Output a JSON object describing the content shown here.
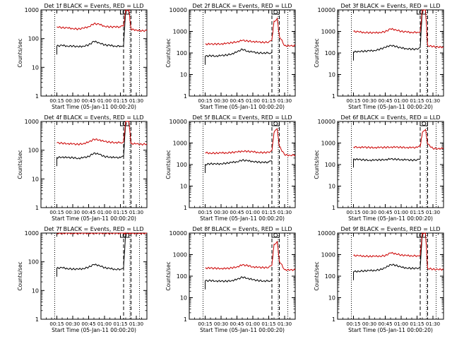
{
  "colors": {
    "events": "#000000",
    "lld": "#cc0000",
    "axes": "#000000"
  },
  "chart_data": [
    {
      "type": "line",
      "title": "Det 1f BLACK = Events, RED = LLD",
      "xlabel": "Start Time (05-Jan-11 00:00:20)",
      "ylabel": "Counts/sec",
      "ylog": true,
      "ylim": [
        1,
        1000
      ],
      "yticks": [
        "1",
        "10",
        "100",
        "1000"
      ],
      "xticks": [
        "00:15",
        "00:30",
        "00:45",
        "01:00",
        "01:15",
        "01:30"
      ],
      "xtick_minutes": [
        15,
        30,
        45,
        60,
        75,
        90
      ],
      "xlim_minutes": [
        0,
        100
      ],
      "vlines_dotted": [
        13,
        84,
        93
      ],
      "vlines_dashed": [
        78,
        85
      ],
      "flare": {
        "peak": 1000,
        "minutes": [
          75,
          83
        ]
      },
      "x": [
        5,
        10,
        15,
        20,
        25,
        30,
        35,
        40,
        45,
        50,
        55,
        60,
        65,
        70,
        75,
        78,
        80,
        83,
        85,
        90,
        95,
        100
      ],
      "series": [
        {
          "name": "Events",
          "values": [
            null,
            null,
            55,
            58,
            55,
            55,
            52,
            55,
            60,
            80,
            72,
            60,
            58,
            55,
            55,
            60,
            1000,
            1000,
            null,
            null,
            null,
            null
          ]
        },
        {
          "name": "LLD",
          "values": [
            null,
            null,
            260,
            240,
            235,
            225,
            215,
            230,
            260,
            330,
            315,
            270,
            255,
            255,
            255,
            270,
            1000,
            1000,
            210,
            200,
            185,
            190
          ]
        }
      ]
    },
    {
      "type": "line",
      "title": "Det 2f BLACK = Events, RED = LLD",
      "xlabel": "Start Time (05-Jan-11 00:00:20)",
      "ylabel": "Counts/sec",
      "ylog": true,
      "ylim": [
        1,
        10000
      ],
      "yticks": [
        "1",
        "10",
        "100",
        "1000",
        "10000"
      ],
      "xticks": [
        "00:15",
        "00:30",
        "00:45",
        "01:00",
        "01:15",
        "01:30"
      ],
      "xtick_minutes": [
        15,
        30,
        45,
        60,
        75,
        90
      ],
      "xlim_minutes": [
        0,
        100
      ],
      "vlines_dotted": [
        13,
        84,
        93
      ],
      "vlines_dashed": [
        78,
        85
      ],
      "flare": {
        "peak": 10000,
        "minutes": [
          78,
          85
        ]
      },
      "x": [
        5,
        10,
        15,
        20,
        25,
        30,
        35,
        40,
        45,
        50,
        55,
        60,
        65,
        70,
        75,
        78,
        80,
        83,
        85,
        90,
        95,
        100
      ],
      "series": [
        {
          "name": "Events",
          "values": [
            null,
            null,
            70,
            75,
            72,
            75,
            80,
            90,
            110,
            150,
            120,
            110,
            100,
            100,
            100,
            110,
            null,
            null,
            null,
            null,
            null,
            null
          ]
        },
        {
          "name": "LLD",
          "values": [
            null,
            null,
            260,
            255,
            260,
            265,
            275,
            300,
            330,
            380,
            360,
            340,
            320,
            310,
            320,
            400,
            3000,
            4000,
            600,
            220,
            210,
            220
          ]
        }
      ]
    },
    {
      "type": "line",
      "title": "Det 3f BLACK = Events, RED = LLD",
      "xlabel": "Start Time (05-Jan-11 00:00:20)",
      "ylabel": "Counts/sec",
      "ylog": true,
      "ylim": [
        1,
        10000
      ],
      "yticks": [
        "1",
        "10",
        "100",
        "1000",
        "10000"
      ],
      "xticks": [
        "00:15",
        "00:30",
        "00:45",
        "01:00",
        "01:15",
        "01:30"
      ],
      "xtick_minutes": [
        15,
        30,
        45,
        60,
        75,
        90
      ],
      "xlim_minutes": [
        0,
        100
      ],
      "vlines_dotted": [
        13,
        84,
        93
      ],
      "vlines_dashed": [
        78,
        85
      ],
      "flare": {
        "peak": 10000,
        "minutes": [
          75,
          83
        ]
      },
      "x": [
        5,
        10,
        15,
        20,
        25,
        30,
        35,
        40,
        45,
        50,
        55,
        60,
        65,
        70,
        75,
        78,
        80,
        83,
        85,
        90,
        95,
        100
      ],
      "series": [
        {
          "name": "Events",
          "values": [
            null,
            null,
            110,
            120,
            120,
            125,
            130,
            150,
            180,
            230,
            200,
            170,
            160,
            150,
            150,
            180,
            10000,
            10000,
            null,
            null,
            null,
            null
          ]
        },
        {
          "name": "LLD",
          "values": [
            null,
            null,
            1000,
            950,
            900,
            880,
            860,
            900,
            980,
            1300,
            1200,
            1000,
            950,
            900,
            920,
            1000,
            10000,
            10000,
            220,
            200,
            185,
            190
          ]
        }
      ]
    },
    {
      "type": "line",
      "title": "Det 4f BLACK = Events, RED = LLD",
      "xlabel": "Start Time (05-Jan-11 00:00:20)",
      "ylabel": "Counts/sec",
      "ylog": true,
      "ylim": [
        1,
        1000
      ],
      "yticks": [
        "1",
        "10",
        "100",
        "1000"
      ],
      "xticks": [
        "00:15",
        "00:30",
        "00:45",
        "01:00",
        "01:15",
        "01:30"
      ],
      "xtick_minutes": [
        15,
        30,
        45,
        60,
        75,
        90
      ],
      "xlim_minutes": [
        0,
        100
      ],
      "vlines_dotted": [
        13,
        84,
        93
      ],
      "vlines_dashed": [
        78,
        85
      ],
      "flare": {
        "peak": 1000,
        "minutes": [
          75,
          83
        ]
      },
      "x": [
        5,
        10,
        15,
        20,
        25,
        30,
        35,
        40,
        45,
        50,
        55,
        60,
        65,
        70,
        75,
        78,
        80,
        83,
        85,
        90,
        95,
        100
      ],
      "series": [
        {
          "name": "Events",
          "values": [
            null,
            null,
            55,
            58,
            55,
            55,
            52,
            55,
            60,
            80,
            72,
            60,
            58,
            55,
            55,
            60,
            1000,
            1000,
            null,
            null,
            null,
            null
          ]
        },
        {
          "name": "LLD",
          "values": [
            null,
            null,
            180,
            175,
            170,
            165,
            160,
            170,
            190,
            240,
            230,
            200,
            190,
            185,
            185,
            200,
            1000,
            1000,
            170,
            165,
            160,
            165
          ]
        }
      ]
    },
    {
      "type": "line",
      "title": "Det 5f BLACK = Events, RED = LLD",
      "xlabel": "Start Time (05-Jan-11 00:00:20)",
      "ylabel": "Counts/sec",
      "ylog": true,
      "ylim": [
        1,
        10000
      ],
      "yticks": [
        "1",
        "10",
        "100",
        "1000",
        "10000"
      ],
      "xticks": [
        "00:15",
        "00:30",
        "00:45",
        "01:00",
        "01:15",
        "01:30"
      ],
      "xtick_minutes": [
        15,
        30,
        45,
        60,
        75,
        90
      ],
      "xlim_minutes": [
        0,
        100
      ],
      "vlines_dotted": [
        13,
        84,
        93
      ],
      "vlines_dashed": [
        78,
        85
      ],
      "flare": {
        "peak": 10000,
        "minutes": [
          78,
          85
        ]
      },
      "x": [
        5,
        10,
        15,
        20,
        25,
        30,
        35,
        40,
        45,
        50,
        55,
        60,
        65,
        70,
        75,
        78,
        80,
        83,
        85,
        90,
        95,
        100
      ],
      "series": [
        {
          "name": "Events",
          "values": [
            null,
            null,
            100,
            110,
            105,
            110,
            115,
            125,
            135,
            160,
            150,
            140,
            130,
            125,
            130,
            140,
            null,
            null,
            null,
            null,
            null,
            null
          ]
        },
        {
          "name": "LLD",
          "values": [
            null,
            null,
            350,
            340,
            340,
            345,
            350,
            365,
            380,
            420,
            410,
            390,
            370,
            360,
            370,
            450,
            3000,
            4500,
            700,
            280,
            270,
            280
          ]
        }
      ]
    },
    {
      "type": "line",
      "title": "Det 6f BLACK = Events, RED = LLD",
      "xlabel": "Start Time (05-Jan-11 00:00:20)",
      "ylabel": "Counts/sec",
      "ylog": true,
      "ylim": [
        1,
        10000
      ],
      "yticks": [
        "1",
        "10",
        "100",
        "1000",
        "10000"
      ],
      "xticks": [
        "00:15",
        "00:30",
        "00:45",
        "01:00",
        "01:15",
        "01:30"
      ],
      "xtick_minutes": [
        15,
        30,
        45,
        60,
        75,
        90
      ],
      "xlim_minutes": [
        0,
        100
      ],
      "vlines_dotted": [
        13,
        84,
        93
      ],
      "vlines_dashed": [
        78,
        85
      ],
      "flare": {
        "peak": 10000,
        "minutes": [
          78,
          85
        ]
      },
      "x": [
        5,
        10,
        15,
        20,
        25,
        30,
        35,
        40,
        45,
        50,
        55,
        60,
        65,
        70,
        75,
        78,
        80,
        83,
        85,
        90,
        95,
        100
      ],
      "series": [
        {
          "name": "Events",
          "values": [
            null,
            null,
            180,
            170,
            165,
            160,
            160,
            165,
            170,
            180,
            175,
            170,
            165,
            160,
            165,
            180,
            null,
            null,
            null,
            null,
            null,
            null
          ]
        },
        {
          "name": "LLD",
          "values": [
            null,
            null,
            650,
            640,
            630,
            620,
            615,
            620,
            625,
            650,
            640,
            630,
            620,
            610,
            620,
            700,
            3000,
            4200,
            900,
            560,
            550,
            560
          ]
        }
      ]
    },
    {
      "type": "line",
      "title": "Det 7f BLACK = Events, RED = LLD",
      "xlabel": "Start Time (05-Jan-11 00:00:20)",
      "ylabel": "Counts/sec",
      "ylog": true,
      "ylim": [
        1,
        1000
      ],
      "yticks": [
        "1",
        "10",
        "100",
        "1000"
      ],
      "xticks": [
        "00:15",
        "00:30",
        "00:45",
        "01:00",
        "01:15",
        "01:30"
      ],
      "xtick_minutes": [
        15,
        30,
        45,
        60,
        75,
        90
      ],
      "xlim_minutes": [
        0,
        100
      ],
      "vlines_dotted": [
        13,
        84,
        93
      ],
      "vlines_dashed": [
        78,
        85
      ],
      "flare": {
        "peak": 1000,
        "minutes": [
          75,
          83
        ]
      },
      "x": [
        5,
        10,
        15,
        20,
        25,
        30,
        35,
        40,
        45,
        50,
        55,
        60,
        65,
        70,
        75,
        78,
        80,
        83,
        85,
        90,
        95,
        100
      ],
      "series": [
        {
          "name": "Events",
          "values": [
            null,
            null,
            60,
            62,
            58,
            56,
            55,
            58,
            65,
            80,
            75,
            62,
            58,
            55,
            55,
            65,
            1000,
            1000,
            null,
            null,
            null,
            null
          ]
        },
        {
          "name": "LLD",
          "values": [
            null,
            null,
            980,
            990,
            985,
            990,
            995,
            990,
            985,
            1000,
            995,
            990,
            985,
            990,
            985,
            990,
            1000,
            1000,
            980,
            985,
            990,
            985
          ]
        }
      ]
    },
    {
      "type": "line",
      "title": "Det 8f BLACK = Events, RED = LLD",
      "xlabel": "Start Time (05-Jan-11 00:00:20)",
      "ylabel": "Counts/sec",
      "ylog": true,
      "ylim": [
        1,
        10000
      ],
      "yticks": [
        "1",
        "10",
        "100",
        "1000",
        "10000"
      ],
      "xticks": [
        "00:15",
        "00:30",
        "00:45",
        "01:00",
        "01:15",
        "01:30"
      ],
      "xtick_minutes": [
        15,
        30,
        45,
        60,
        75,
        90
      ],
      "xlim_minutes": [
        0,
        100
      ],
      "vlines_dotted": [
        13,
        84,
        93
      ],
      "vlines_dashed": [
        78,
        85
      ],
      "flare": {
        "peak": 10000,
        "minutes": [
          78,
          85
        ]
      },
      "x": [
        5,
        10,
        15,
        20,
        25,
        30,
        35,
        40,
        45,
        50,
        55,
        60,
        65,
        70,
        75,
        78,
        80,
        83,
        85,
        90,
        95,
        100
      ],
      "series": [
        {
          "name": "Events",
          "values": [
            null,
            null,
            60,
            62,
            60,
            58,
            58,
            62,
            70,
            90,
            80,
            68,
            62,
            60,
            60,
            70,
            null,
            null,
            null,
            null,
            null,
            null
          ]
        },
        {
          "name": "LLD",
          "values": [
            null,
            null,
            240,
            235,
            230,
            228,
            225,
            240,
            270,
            330,
            310,
            270,
            255,
            250,
            255,
            320,
            3000,
            4200,
            500,
            200,
            190,
            200
          ]
        }
      ]
    },
    {
      "type": "line",
      "title": "Det 9f BLACK = Events, RED = LLD",
      "xlabel": "Start Time (05-Jan-11 00:00:20)",
      "ylabel": "Counts/sec",
      "ylog": true,
      "ylim": [
        1,
        10000
      ],
      "yticks": [
        "1",
        "10",
        "100",
        "1000",
        "10000"
      ],
      "xticks": [
        "00:15",
        "00:30",
        "00:45",
        "01:00",
        "01:15",
        "01:30"
      ],
      "xtick_minutes": [
        15,
        30,
        45,
        60,
        75,
        90
      ],
      "xlim_minutes": [
        0,
        100
      ],
      "vlines_dotted": [
        13,
        84,
        93
      ],
      "vlines_dashed": [
        78,
        85
      ],
      "flare": {
        "peak": 10000,
        "minutes": [
          75,
          83
        ]
      },
      "x": [
        5,
        10,
        15,
        20,
        25,
        30,
        35,
        40,
        45,
        50,
        55,
        60,
        65,
        70,
        75,
        78,
        80,
        83,
        85,
        90,
        95,
        100
      ],
      "series": [
        {
          "name": "Events",
          "values": [
            null,
            null,
            160,
            170,
            175,
            180,
            185,
            200,
            240,
            350,
            320,
            260,
            240,
            230,
            230,
            260,
            10000,
            10000,
            null,
            null,
            null,
            null
          ]
        },
        {
          "name": "LLD",
          "values": [
            null,
            null,
            900,
            880,
            850,
            840,
            830,
            850,
            900,
            1200,
            1100,
            950,
            900,
            880,
            880,
            950,
            10000,
            10000,
            230,
            210,
            200,
            210
          ]
        }
      ]
    }
  ]
}
